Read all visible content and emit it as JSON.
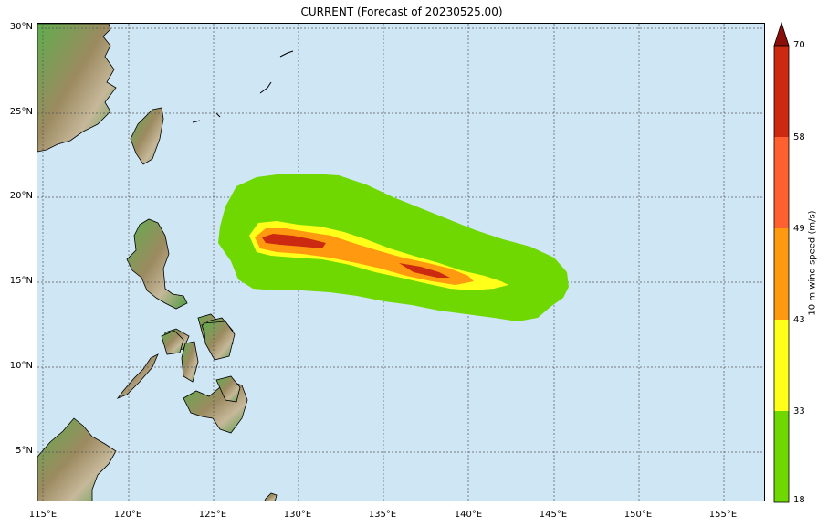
{
  "title": "CURRENT (Forecast of 20230525.00)",
  "map": {
    "lon_range": [
      114.5,
      157.5
    ],
    "lat_range": [
      2,
      30.2
    ],
    "grid": true,
    "ocean_color": "#cfe6f5",
    "lat_ticks": [
      {
        "value": 30,
        "label": "30°N"
      },
      {
        "value": 25,
        "label": "25°N"
      },
      {
        "value": 20,
        "label": "20°N"
      },
      {
        "value": 15,
        "label": "15°N"
      },
      {
        "value": 10,
        "label": "10°N"
      },
      {
        "value": 5,
        "label": "5°N"
      }
    ],
    "lon_ticks": [
      {
        "value": 115,
        "label": "115°E"
      },
      {
        "value": 120,
        "label": "120°E"
      },
      {
        "value": 125,
        "label": "125°E"
      },
      {
        "value": 130,
        "label": "130°E"
      },
      {
        "value": 135,
        "label": "135°E"
      },
      {
        "value": 140,
        "label": "140°E"
      },
      {
        "value": 145,
        "label": "145°E"
      },
      {
        "value": 150,
        "label": "150°E"
      },
      {
        "value": 155,
        "label": "155°E"
      }
    ]
  },
  "colorbar": {
    "label": "10 m wind speed (m/s)",
    "levels": [
      "18",
      "33",
      "43",
      "49",
      "58",
      "70"
    ],
    "colors": [
      "#6fd800",
      "#ffff1a",
      "#ff9a10",
      "#ff6030",
      "#cc2a10"
    ],
    "extend_color": "#8a0f08"
  }
}
